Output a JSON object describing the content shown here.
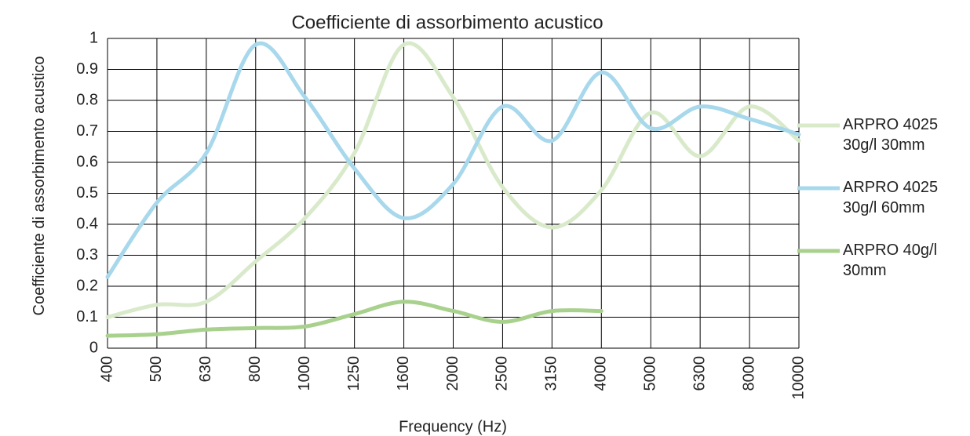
{
  "chart_data": {
    "type": "line",
    "title": "Coefficiente di assorbimento acustico",
    "x_label": "Frequency (Hz)",
    "y_label": "Coefficiente di assorbimento acustico",
    "categories": [
      "400",
      "500",
      "630",
      "800",
      "1000",
      "1250",
      "1600",
      "2000",
      "2500",
      "3150",
      "4000",
      "5000",
      "6300",
      "8000",
      "10000"
    ],
    "series": [
      {
        "name": "ARPRO 4025 30g/l 30mm",
        "color": "#d9eacb",
        "values": [
          0.1,
          0.14,
          0.15,
          0.28,
          0.42,
          0.63,
          0.98,
          0.81,
          0.52,
          0.39,
          0.51,
          0.76,
          0.62,
          0.78,
          0.67
        ]
      },
      {
        "name": "ARPRO 4025 30g/l 60mm",
        "color": "#a8d8ec",
        "values": [
          0.23,
          0.47,
          0.63,
          0.98,
          0.81,
          0.58,
          0.42,
          0.53,
          0.78,
          0.67,
          0.89,
          0.71,
          0.78,
          0.74,
          0.69
        ]
      },
      {
        "name": "ARPRO 40g/l 30mm",
        "color": "#a9d18e",
        "values": [
          0.04,
          0.045,
          0.06,
          0.065,
          0.07,
          0.11,
          0.15,
          0.12,
          0.085,
          0.12,
          0.12,
          null,
          null,
          null,
          null
        ]
      }
    ],
    "ylim": [
      0,
      1
    ],
    "yticks": [
      0,
      0.1,
      0.2,
      0.3,
      0.4,
      0.5,
      0.6,
      0.7,
      0.8,
      0.9,
      1
    ],
    "grid": true,
    "legend": "right"
  }
}
